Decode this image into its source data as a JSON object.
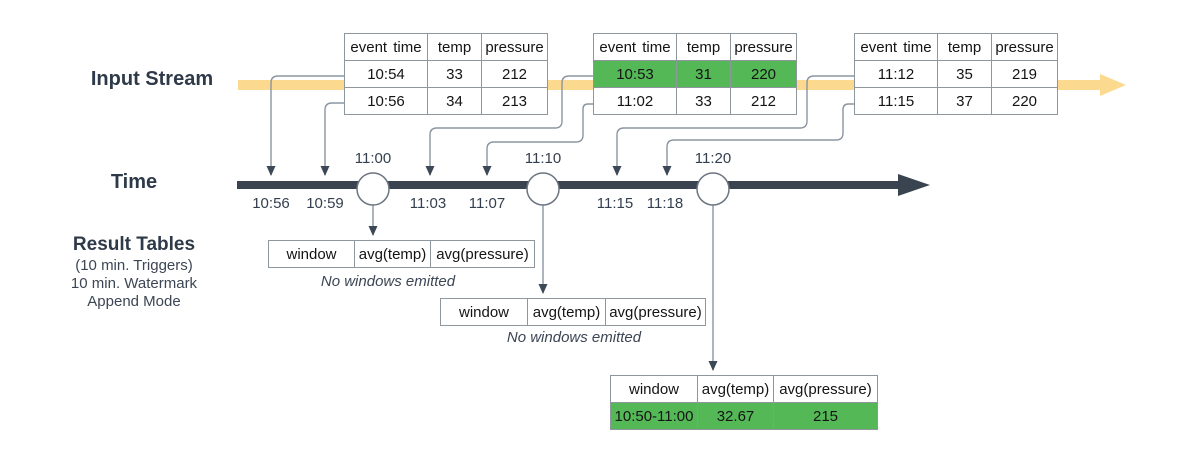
{
  "labels": {
    "input_stream": "Input Stream",
    "time": "Time",
    "result_tables_title": "Result Tables",
    "result_tables_sub1": "(10 min. Triggers)",
    "result_tables_sub2": "10 min. Watermark",
    "result_tables_sub3": "Append Mode"
  },
  "colors": {
    "stream_band": "#fbd98f",
    "timeline": "#3a4451",
    "highlight_green": "#54b857",
    "connector": "#8b95a1",
    "arrowhead": "#3d4856",
    "table_border": "#8e979e",
    "label_text": "#2f3a49"
  },
  "timeline": {
    "trigger_points": [
      {
        "label": "11:00"
      },
      {
        "label": "11:10"
      },
      {
        "label": "11:20"
      }
    ],
    "ticks": [
      {
        "label": "10:56"
      },
      {
        "label": "10:59"
      },
      {
        "label": "11:03"
      },
      {
        "label": "11:07"
      },
      {
        "label": "11:15"
      },
      {
        "label": "11:18"
      }
    ]
  },
  "input_tables": [
    {
      "headers": [
        "event time",
        "temp",
        "pressure"
      ],
      "rows": [
        {
          "cells": [
            "10:54",
            "33",
            "212"
          ],
          "highlight": false
        },
        {
          "cells": [
            "10:56",
            "34",
            "213"
          ],
          "highlight": false
        }
      ]
    },
    {
      "headers": [
        "event time",
        "temp",
        "pressure"
      ],
      "rows": [
        {
          "cells": [
            "10:53",
            "31",
            "220"
          ],
          "highlight": true
        },
        {
          "cells": [
            "11:02",
            "33",
            "212"
          ],
          "highlight": false
        }
      ]
    },
    {
      "headers": [
        "event time",
        "temp",
        "pressure"
      ],
      "rows": [
        {
          "cells": [
            "11:12",
            "35",
            "219"
          ],
          "highlight": false
        },
        {
          "cells": [
            "11:15",
            "37",
            "220"
          ],
          "highlight": false
        }
      ]
    }
  ],
  "result_tables": [
    {
      "headers": [
        "window",
        "avg(temp)",
        "avg(pressure)"
      ],
      "rows": [],
      "note": "No windows emitted"
    },
    {
      "headers": [
        "window",
        "avg(temp)",
        "avg(pressure)"
      ],
      "rows": [],
      "note": "No windows emitted"
    },
    {
      "headers": [
        "window",
        "avg(temp)",
        "avg(pressure)"
      ],
      "rows": [
        {
          "cells": [
            "10:50-11:00",
            "32.67",
            "215"
          ],
          "highlight": true
        }
      ],
      "note": ""
    }
  ]
}
